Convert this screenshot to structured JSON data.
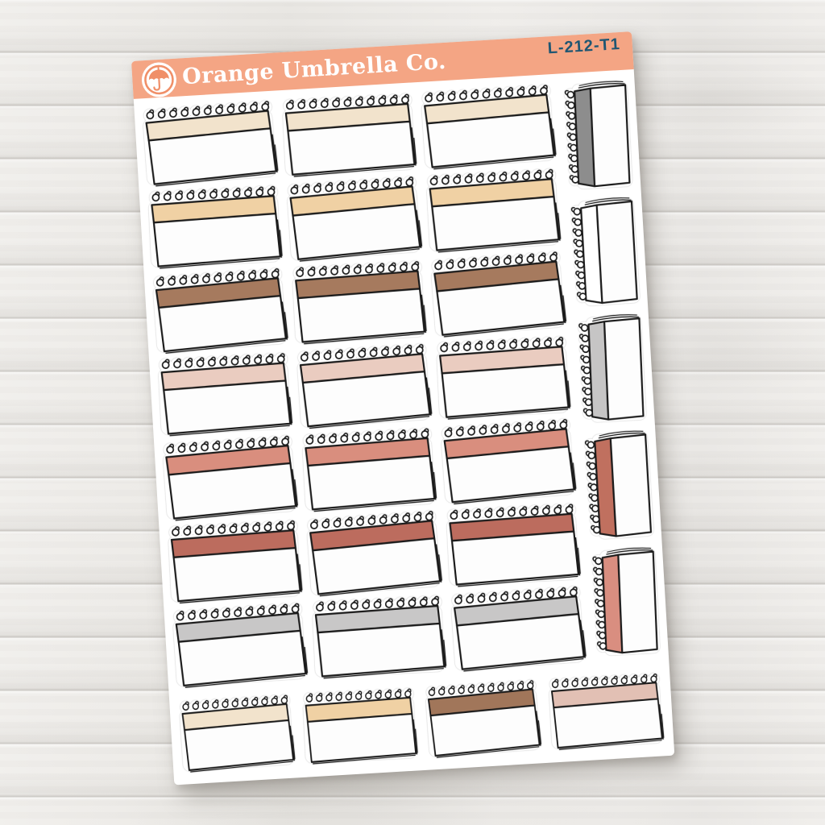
{
  "brand": {
    "name": "Orange Umbrella Co.",
    "logo_icon": "umbrella-icon",
    "product_code": "L-212-T1"
  },
  "palette": {
    "header_bar": "#F4A584",
    "logo_orange": "#F08F68",
    "code_text": "#1F5672",
    "ink": "#1A1A1A",
    "sheet": "#FFFFFF",
    "background_wood": "#EDEBE8"
  },
  "stickers": [
    {
      "type": "notebook-horizontal",
      "row": 1,
      "col": 1,
      "color_name": "cream",
      "band_hex": "#F2E3CC"
    },
    {
      "type": "notebook-horizontal",
      "row": 1,
      "col": 2,
      "color_name": "cream",
      "band_hex": "#F2E3CC"
    },
    {
      "type": "notebook-horizontal",
      "row": 1,
      "col": 3,
      "color_name": "cream",
      "band_hex": "#F2E3CC"
    },
    {
      "type": "notebook-horizontal",
      "row": 2,
      "col": 1,
      "color_name": "wheat",
      "band_hex": "#F0D1A4"
    },
    {
      "type": "notebook-horizontal",
      "row": 2,
      "col": 2,
      "color_name": "wheat",
      "band_hex": "#F0D1A4"
    },
    {
      "type": "notebook-horizontal",
      "row": 2,
      "col": 3,
      "color_name": "wheat",
      "band_hex": "#F0D1A4"
    },
    {
      "type": "notebook-horizontal",
      "row": 3,
      "col": 1,
      "color_name": "brown",
      "band_hex": "#A67A5E"
    },
    {
      "type": "notebook-horizontal",
      "row": 3,
      "col": 2,
      "color_name": "brown",
      "band_hex": "#A67A5E"
    },
    {
      "type": "notebook-horizontal",
      "row": 3,
      "col": 3,
      "color_name": "brown",
      "band_hex": "#A67A5E"
    },
    {
      "type": "notebook-horizontal",
      "row": 4,
      "col": 1,
      "color_name": "blush",
      "band_hex": "#EACCC0"
    },
    {
      "type": "notebook-horizontal",
      "row": 4,
      "col": 2,
      "color_name": "blush",
      "band_hex": "#EACCC0"
    },
    {
      "type": "notebook-horizontal",
      "row": 4,
      "col": 3,
      "color_name": "blush",
      "band_hex": "#EACCC0"
    },
    {
      "type": "notebook-horizontal",
      "row": 5,
      "col": 1,
      "color_name": "salmon",
      "band_hex": "#D98E7E"
    },
    {
      "type": "notebook-horizontal",
      "row": 5,
      "col": 2,
      "color_name": "salmon",
      "band_hex": "#D98E7E"
    },
    {
      "type": "notebook-horizontal",
      "row": 5,
      "col": 3,
      "color_name": "salmon",
      "band_hex": "#D98E7E"
    },
    {
      "type": "notebook-horizontal",
      "row": 6,
      "col": 1,
      "color_name": "rust",
      "band_hex": "#BC6C5E"
    },
    {
      "type": "notebook-horizontal",
      "row": 6,
      "col": 2,
      "color_name": "rust",
      "band_hex": "#BC6C5E"
    },
    {
      "type": "notebook-horizontal",
      "row": 6,
      "col": 3,
      "color_name": "rust",
      "band_hex": "#BC6C5E"
    },
    {
      "type": "notebook-horizontal",
      "row": 7,
      "col": 1,
      "color_name": "gray",
      "band_hex": "#C8C7C7"
    },
    {
      "type": "notebook-horizontal",
      "row": 7,
      "col": 2,
      "color_name": "gray",
      "band_hex": "#C8C7C7"
    },
    {
      "type": "notebook-horizontal",
      "row": 7,
      "col": 3,
      "color_name": "gray",
      "band_hex": "#C8C7C7"
    },
    {
      "type": "notebook-vertical",
      "slot": 1,
      "color_name": "dark-gray",
      "band_hex": "#8D8D8D"
    },
    {
      "type": "notebook-vertical",
      "slot": 2,
      "color_name": "white",
      "band_hex": "#FFFFFF"
    },
    {
      "type": "notebook-vertical",
      "slot": 3,
      "color_name": "silver",
      "band_hex": "#C6C5C5"
    },
    {
      "type": "notebook-vertical",
      "slot": 4,
      "color_name": "rust",
      "band_hex": "#C0705F"
    },
    {
      "type": "notebook-vertical",
      "slot": 5,
      "color_name": "salmon",
      "band_hex": "#D98E80"
    },
    {
      "type": "notebook-horizontal-small",
      "slot": 1,
      "color_name": "cream",
      "band_hex": "#F2E3CC"
    },
    {
      "type": "notebook-horizontal-small",
      "slot": 2,
      "color_name": "wheat",
      "band_hex": "#F0D1A4"
    },
    {
      "type": "notebook-horizontal-small",
      "slot": 3,
      "color_name": "brown",
      "band_hex": "#A1765A"
    },
    {
      "type": "notebook-horizontal-small",
      "slot": 4,
      "color_name": "blush",
      "band_hex": "#E2C0B4"
    }
  ]
}
